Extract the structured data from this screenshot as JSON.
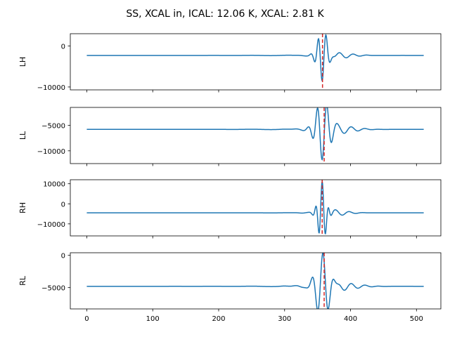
{
  "figure": {
    "suptitle": "SS, XCAL in, ICAL: 12.06 K, XCAL: 2.81 K"
  },
  "colors": {
    "series": "#1f77b4",
    "marker": "#d62728",
    "axes": "#000000"
  },
  "chart_data": [
    {
      "type": "line",
      "ylabel": "LH",
      "xlim": [
        -25,
        537
      ],
      "ylim": [
        -10700,
        3000
      ],
      "yticks": [
        0,
        -10000
      ],
      "ytick_labels": [
        "0",
        "−10000"
      ],
      "show_xtick_labels": false,
      "baseline": -2300,
      "pulse": {
        "center": 357,
        "amp": 6200,
        "width": 7,
        "period": 12,
        "sign": -1,
        "ring_amp": 700,
        "ring_center": 378,
        "ring_width": 22
      },
      "marker_x": 357.5,
      "grid": false
    },
    {
      "type": "line",
      "ylabel": "LL",
      "xlim": [
        -25,
        537
      ],
      "ylim": [
        -12500,
        -1500
      ],
      "yticks": [
        -5000,
        -10000
      ],
      "ytick_labels": [
        "−5000",
        "−10000"
      ],
      "show_xtick_labels": false,
      "baseline": -5800,
      "pulse": {
        "center": 357,
        "amp": 6500,
        "width": 9,
        "period": 15,
        "sign": -1,
        "ring_amp": 900,
        "ring_center": 375,
        "ring_width": 25
      },
      "marker_x": 360,
      "grid": false
    },
    {
      "type": "line",
      "ylabel": "RH",
      "xlim": [
        -25,
        537
      ],
      "ylim": [
        -16000,
        12000
      ],
      "yticks": [
        10000,
        0,
        -10000
      ],
      "ytick_labels": [
        "10000",
        "0",
        "−10000"
      ],
      "show_xtick_labels": false,
      "baseline": -4500,
      "pulse": {
        "center": 357,
        "amp": 14500,
        "width": 6,
        "period": 10,
        "sign": 1,
        "ring_amp": 1500,
        "ring_center": 372,
        "ring_width": 20
      },
      "marker_x": 357,
      "grid": false
    },
    {
      "type": "line",
      "ylabel": "RL",
      "xlim": [
        -25,
        537
      ],
      "ylim": [
        -8300,
        400
      ],
      "yticks": [
        0,
        -5000
      ],
      "ytick_labels": [
        "0",
        "−5000"
      ],
      "show_xtick_labels": true,
      "xticks": [
        0,
        100,
        200,
        300,
        400,
        500
      ],
      "xtick_labels": [
        "0",
        "100",
        "200",
        "300",
        "400",
        "500"
      ],
      "baseline": -4800,
      "pulse": {
        "center": 358,
        "amp": 4600,
        "width": 10,
        "period": 16,
        "sign": 1,
        "ring_amp": 700,
        "ring_center": 375,
        "ring_width": 28
      },
      "marker_x": 360,
      "grid": false
    }
  ]
}
